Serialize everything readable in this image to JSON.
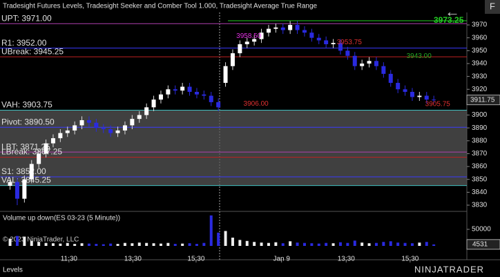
{
  "header": {
    "title": "Tradesight Futures Levels, Tradesight Seeker and Comber Tool 1.000, Tradesight Average True Range",
    "button": "F",
    "back": "←"
  },
  "chart_data": {
    "type": "candlestick",
    "xlim": [
      -1.4,
      63.6
    ],
    "xticks": [
      {
        "value": 8.2,
        "label": "11:30"
      },
      {
        "value": 17.1,
        "label": "13:30"
      },
      {
        "value": 25.9,
        "label": "15:30"
      },
      {
        "value": 37.8,
        "label": "Jan 9"
      },
      {
        "value": 46.8,
        "label": "13:30"
      },
      {
        "value": 55.7,
        "label": "15:30"
      }
    ],
    "ylim": [
      3825.7,
      3979.7
    ],
    "yticks": [
      3830,
      3840,
      3850,
      3860,
      3870,
      3880,
      3890,
      3900,
      3910,
      3920,
      3930,
      3940,
      3950,
      3960,
      3970
    ],
    "up_color": "#ffffff",
    "down_color": "#2a2ae0",
    "open": [
      3845,
      3848,
      3835,
      3850,
      3862,
      3870,
      3878,
      3882,
      3886,
      3888,
      3892,
      3896,
      3894,
      3890,
      3889,
      3886,
      3888,
      3892,
      3897,
      3900,
      3906,
      3912,
      3916,
      3920,
      3919,
      3922,
      3918,
      3916,
      3915,
      3910,
      3925,
      3938,
      3948,
      3955,
      3957,
      3959,
      3964,
      3967,
      3968,
      3966,
      3970,
      3966,
      3964,
      3960,
      3958,
      3955,
      3956,
      3950,
      3946,
      3938,
      3940,
      3942,
      3938,
      3932,
      3925,
      3920,
      3918,
      3914,
      3915,
      3912
    ],
    "high": [
      3851,
      3851,
      3853,
      3865,
      3873,
      3881,
      3885,
      3889,
      3891,
      3895,
      3899,
      3899,
      3897,
      3893,
      3892,
      3891,
      3895,
      3900,
      3903,
      3909,
      3915,
      3919,
      3923,
      3923,
      3925,
      3925,
      3921,
      3919,
      3918,
      3913,
      3941,
      3951,
      3958,
      3960,
      3962,
      3967,
      3970,
      3971,
      3971,
      3973,
      3973,
      3969,
      3967,
      3963,
      3961,
      3959,
      3959,
      3953,
      3949,
      3943,
      3945,
      3945,
      3941,
      3935,
      3928,
      3923,
      3921,
      3918,
      3918,
      3915
    ],
    "low": [
      3842,
      3830,
      3832,
      3847,
      3859,
      3867,
      3875,
      3879,
      3883,
      3885,
      3889,
      3891,
      3887,
      3886,
      3883,
      3883,
      3885,
      3889,
      3894,
      3897,
      3903,
      3909,
      3913,
      3916,
      3916,
      3915,
      3913,
      3912,
      3907,
      3903,
      3922,
      3935,
      3945,
      3952,
      3954,
      3956,
      3961,
      3964,
      3963,
      3963,
      3963,
      3961,
      3957,
      3955,
      3952,
      3952,
      3947,
      3943,
      3935,
      3935,
      3937,
      3935,
      3929,
      3922,
      3917,
      3915,
      3911,
      3911,
      3909,
      3909
    ],
    "close": [
      3848,
      3835,
      3850,
      3862,
      3870,
      3878,
      3882,
      3886,
      3888,
      3892,
      3896,
      3894,
      3890,
      3889,
      3886,
      3888,
      3892,
      3897,
      3900,
      3906,
      3912,
      3916,
      3920,
      3919,
      3922,
      3918,
      3916,
      3915,
      3910,
      3906,
      3938,
      3948,
      3955,
      3957,
      3959,
      3964,
      3967,
      3968,
      3966,
      3970,
      3966,
      3964,
      3960,
      3958,
      3955,
      3956,
      3950,
      3946,
      3938,
      3940,
      3942,
      3938,
      3932,
      3925,
      3920,
      3918,
      3914,
      3915,
      3912,
      3911.75
    ],
    "last_price": {
      "value": 3911.75,
      "label": "3911.75"
    },
    "levels": [
      {
        "label": "UPT: 3971.00",
        "value": 3971,
        "color": "#b040b0"
      },
      {
        "label": "R1: 3952.00",
        "value": 3952,
        "color": "#3a3aff"
      },
      {
        "label": "UBreak: 3945.25",
        "value": 3945.25,
        "color": "#c02020"
      },
      {
        "label": "VAH: 3903.75",
        "value": 3903.75,
        "color": "#40c0c0"
      },
      {
        "label": "Pivot: 3890.50",
        "value": 3890.5,
        "color": "#3a3aff"
      },
      {
        "label": "LBT: 3871.25",
        "value": 3871.25,
        "color": "#b040b0"
      },
      {
        "label": "LBreak: 3867.25",
        "value": 3867.25,
        "color": "#c02020"
      },
      {
        "label": "S1: 3852.00",
        "value": 3852,
        "color": "#3a3aff"
      },
      {
        "label": "VAL: 3845.25",
        "value": 3845.25,
        "color": "#40c0c0"
      }
    ],
    "target": {
      "value": 3973.25,
      "color": "#22cc22"
    },
    "price_labels": [
      {
        "x": 31.5,
        "value": 3958.5,
        "label": "3958.50",
        "color": "#e030e0"
      },
      {
        "x": 45.5,
        "value": 3953.75,
        "label": "3953.75",
        "color": "#e03030"
      },
      {
        "x": 55.2,
        "value": 3943,
        "label": "3943.00",
        "color": "#22aa22"
      },
      {
        "x": 32.5,
        "value": 3906,
        "label": "3906.00",
        "color": "#e03030"
      },
      {
        "x": 57.8,
        "value": 3905.75,
        "label": "3905.75",
        "color": "#e03030"
      }
    ],
    "volume": {
      "title": "Volume up down(ES 03-23 (5 Minute))",
      "ylim": [
        0,
        100000
      ],
      "yticks": [
        10000,
        50000
      ],
      "values": [
        22000,
        30000,
        28000,
        15000,
        12000,
        9000,
        8000,
        7000,
        9000,
        6000,
        8000,
        7000,
        6000,
        5000,
        7000,
        6000,
        9000,
        8000,
        10000,
        9000,
        8000,
        7000,
        9000,
        6000,
        7000,
        8000,
        6000,
        9000,
        92000,
        40000,
        45000,
        25000,
        18000,
        15000,
        12000,
        10000,
        9000,
        11000,
        8000,
        14000,
        10000,
        9000,
        8000,
        7000,
        9000,
        8000,
        11000,
        9000,
        16000,
        10000,
        8000,
        9000,
        12000,
        14000,
        10000,
        9000,
        8000,
        10000,
        12000,
        4531
      ]
    }
  },
  "footer": {
    "copyright": "© 2023 NinjaTrader, LLC",
    "tab": "Levels",
    "logo": "NINJATRADER"
  }
}
